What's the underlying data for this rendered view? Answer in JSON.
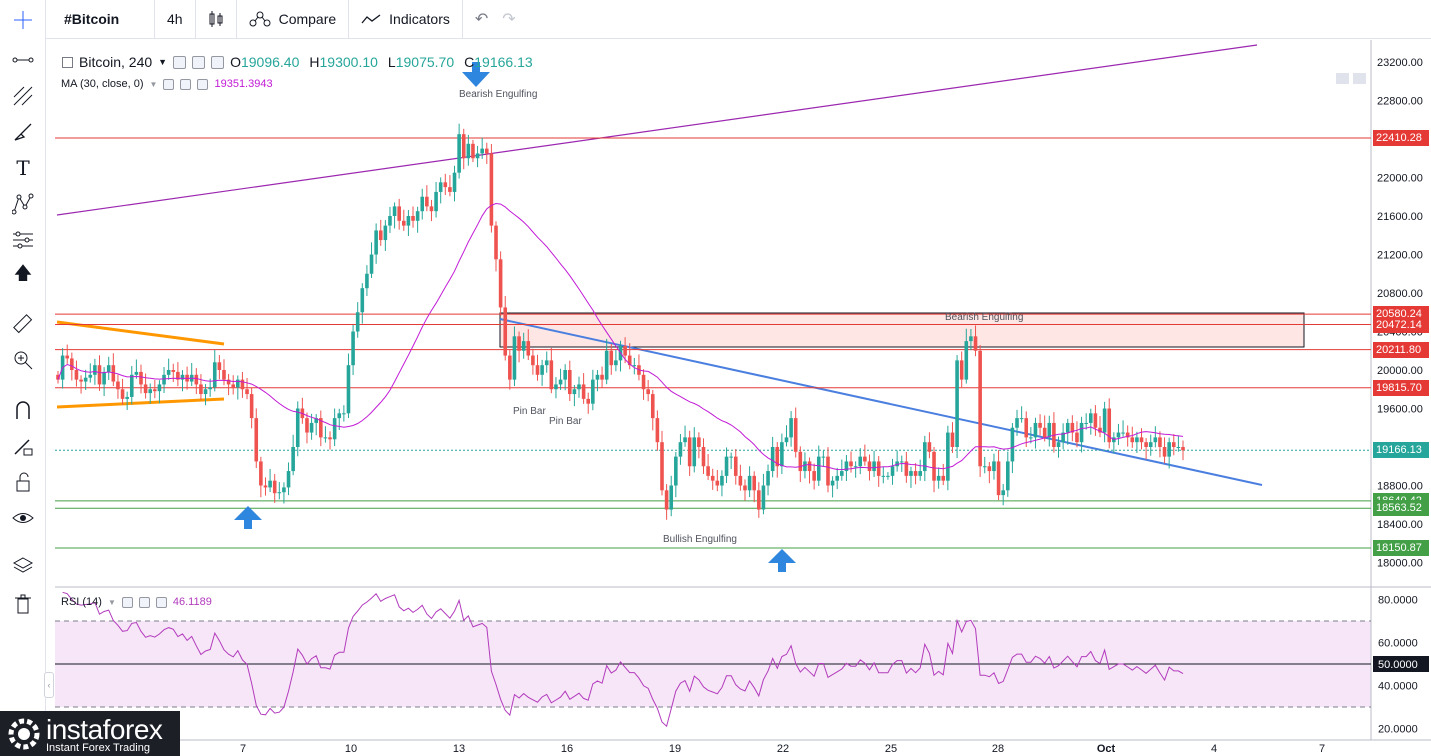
{
  "toolbar": {
    "symbol": "#Bitcoin",
    "interval": "4h",
    "compare_label": "Compare",
    "indicators_label": "Indicators"
  },
  "legend": {
    "title": "Bitcoin, 240",
    "open_label": "O",
    "open": "19096.40",
    "high_label": "H",
    "high": "19300.10",
    "low_label": "L",
    "low": "19075.70",
    "close_label": "C",
    "close": "19166.13",
    "ma_label": "MA (30, close, 0)",
    "ma_value": "19351.3943",
    "rsi_label": "RSI (14)",
    "rsi_value": "46.1189"
  },
  "annotations": {
    "bearish_top": "Bearish Engulfing",
    "bearish_zone": "Bearish Engulfing",
    "pin_bar_1": "Pin Bar",
    "pin_bar_2": "Pin Bar",
    "bullish": "Bullish Engulfing"
  },
  "logo": {
    "name": "instaforex",
    "tagline": "Instant Forex Trading"
  },
  "colors": {
    "up": "#26a69a",
    "down": "#ef5350",
    "ma": "#c21bd6",
    "resistance": "#e53935",
    "support": "#43a047",
    "trend_blue": "#4a7fe0",
    "triangle": "#ff9800",
    "channel": "#9c27b0",
    "arrow": "#2e86de",
    "rsi": "#b23bbd"
  },
  "chart_data": {
    "type": "candlestick",
    "price_axis_ticks": [
      "23200.00",
      "22800.00",
      "22400.00",
      "22000.00",
      "21600.00",
      "21200.00",
      "20800.00",
      "20400.00",
      "20000.00",
      "19600.00",
      "19200.00",
      "18800.00",
      "18400.00",
      "18000.00"
    ],
    "x_axis_ticks": [
      "7",
      "10",
      "13",
      "16",
      "19",
      "22",
      "25",
      "28",
      "Oct",
      "4",
      "7"
    ],
    "levels": [
      {
        "value": 22410.28,
        "label": "22410.28",
        "kind": "resistance"
      },
      {
        "value": 20580.24,
        "label": "20580.24",
        "kind": "resistance"
      },
      {
        "value": 20472.14,
        "label": "20472.14",
        "kind": "resistance"
      },
      {
        "value": 20211.8,
        "label": "20211.80",
        "kind": "resistance"
      },
      {
        "value": 19815.7,
        "label": "19815.70",
        "kind": "resistance"
      },
      {
        "value": 19166.13,
        "label": "19166.13",
        "kind": "current"
      },
      {
        "value": 18640.42,
        "label": "18640.42",
        "kind": "support"
      },
      {
        "value": 18563.52,
        "label": "18563.52",
        "kind": "support"
      },
      {
        "value": 18150.87,
        "label": "18150.87",
        "kind": "support"
      }
    ],
    "closes": [
      19900,
      20150,
      20120,
      20000,
      19900,
      19880,
      19920,
      19950,
      20050,
      19850,
      19980,
      20050,
      19880,
      19800,
      19700,
      19720,
      19950,
      19980,
      19850,
      19760,
      19800,
      19780,
      19850,
      19950,
      20000,
      19980,
      19900,
      19950,
      19880,
      19950,
      19850,
      19750,
      19800,
      19820,
      20080,
      20000,
      19900,
      19850,
      19820,
      19900,
      19800,
      19750,
      19500,
      19050,
      18800,
      18780,
      18850,
      18720,
      18730,
      18780,
      18950,
      19200,
      19600,
      19500,
      19350,
      19450,
      19500,
      19300,
      19300,
      19280,
      19500,
      19550,
      19550,
      20050,
      20400,
      20600,
      20850,
      21000,
      21200,
      21450,
      21350,
      21500,
      21600,
      21700,
      21550,
      21500,
      21600,
      21550,
      21650,
      21800,
      21700,
      21650,
      21850,
      21950,
      21900,
      21850,
      22050,
      22450,
      22200,
      22350,
      22200,
      22250,
      22300,
      22250,
      21500,
      21150,
      20650,
      20150,
      19900,
      20350,
      20200,
      20300,
      20150,
      20050,
      19950,
      20050,
      20100,
      19800,
      19850,
      19900,
      20000,
      19750,
      19800,
      19850,
      19700,
      19650,
      19900,
      19950,
      19900,
      20200,
      20050,
      20100,
      20250,
      20150,
      20050,
      20050,
      19950,
      19800,
      19750,
      19500,
      19250,
      18750,
      18550,
      18800,
      19100,
      19250,
      19300,
      19000,
      19300,
      19200,
      19000,
      18900,
      18850,
      18800,
      18900,
      19100,
      19100,
      18900,
      18800,
      18750,
      18900,
      18750,
      18550,
      18800,
      18950,
      19200,
      19000,
      19250,
      19300,
      19500,
      19150,
      18950,
      19050,
      18950,
      18850,
      19100,
      19100,
      18800,
      18850,
      18900,
      18950,
      19050,
      19000,
      19000,
      19100,
      19050,
      18950,
      19050,
      18900,
      18900,
      18900,
      19000,
      19050,
      19050,
      18900,
      18950,
      18900,
      18950,
      19250,
      19150,
      18850,
      18900,
      18850,
      19350,
      19200,
      20100,
      19900,
      20300,
      20350,
      20200,
      19000,
      19000,
      18950,
      19050,
      18700,
      18750,
      19050,
      19400,
      19500,
      19500,
      19300,
      19300,
      19450,
      19400,
      19300,
      19450,
      19200,
      19250,
      19350,
      19450,
      19350,
      19250,
      19450,
      19450,
      19550,
      19400,
      19350,
      19600,
      19250,
      19300,
      19350,
      19350,
      19300,
      19250,
      19300,
      19250,
      19200,
      19250,
      19300,
      19200,
      19100,
      19250,
      19200,
      19200,
      19166.13
    ],
    "rsi_ticks": [
      "80.0000",
      "60.0000",
      "50.0000",
      "40.0000",
      "20.0000"
    ],
    "rsi_levels": [
      70,
      50,
      30
    ]
  }
}
